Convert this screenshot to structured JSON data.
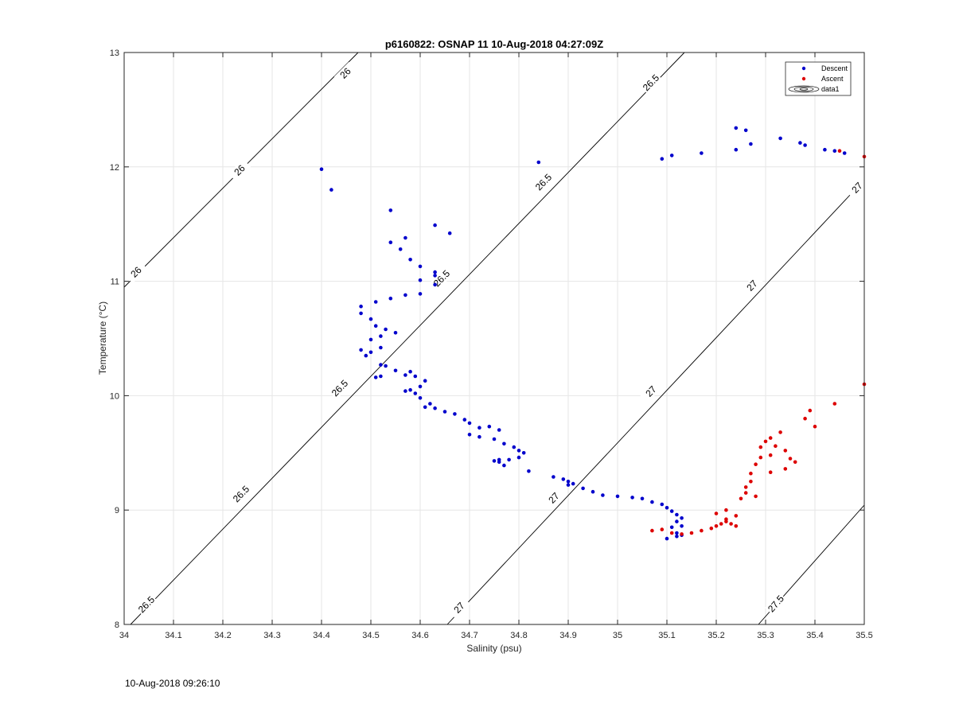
{
  "timestamp": "10-Aug-2018 09:26:10",
  "chart_data": {
    "type": "scatter",
    "title": "p6160822: OSNAP 11 10-Aug-2018 04:27:09Z",
    "xlabel": "Salinity (psu)",
    "ylabel": "Temperature (°C)",
    "xlim": [
      34,
      35.5
    ],
    "ylim": [
      8,
      13
    ],
    "grid": true,
    "x_ticks": [
      "34",
      "34.1",
      "34.2",
      "34.3",
      "34.4",
      "34.5",
      "34.6",
      "34.7",
      "34.8",
      "34.9",
      "35",
      "35.1",
      "35.2",
      "35.3",
      "35.4",
      "35.5"
    ],
    "y_ticks": [
      "8",
      "9",
      "10",
      "11",
      "12",
      "13"
    ],
    "legend": {
      "position": "top-right",
      "entries": [
        "Descent",
        "Ascent",
        "data1"
      ]
    },
    "series": [
      {
        "name": "Descent",
        "color": "#0000cc",
        "points": [
          [
            34.4,
            11.98
          ],
          [
            34.42,
            11.8
          ],
          [
            34.54,
            11.62
          ],
          [
            34.54,
            11.34
          ],
          [
            34.56,
            11.28
          ],
          [
            34.57,
            11.38
          ],
          [
            34.58,
            11.19
          ],
          [
            34.6,
            11.13
          ],
          [
            34.6,
            11.01
          ],
          [
            34.63,
            11.49
          ],
          [
            34.66,
            11.42
          ],
          [
            34.63,
            11.08
          ],
          [
            34.63,
            11.05
          ],
          [
            34.63,
            10.97
          ],
          [
            34.6,
            10.89
          ],
          [
            34.57,
            10.88
          ],
          [
            34.54,
            10.85
          ],
          [
            34.51,
            10.82
          ],
          [
            34.48,
            10.78
          ],
          [
            34.48,
            10.72
          ],
          [
            34.5,
            10.67
          ],
          [
            34.51,
            10.61
          ],
          [
            34.53,
            10.58
          ],
          [
            34.55,
            10.55
          ],
          [
            34.52,
            10.52
          ],
          [
            34.5,
            10.49
          ],
          [
            34.52,
            10.42
          ],
          [
            34.5,
            10.38
          ],
          [
            34.48,
            10.4
          ],
          [
            34.49,
            10.35
          ],
          [
            34.52,
            10.27
          ],
          [
            34.53,
            10.26
          ],
          [
            34.51,
            10.16
          ],
          [
            34.52,
            10.17
          ],
          [
            34.55,
            10.22
          ],
          [
            34.57,
            10.18
          ],
          [
            34.58,
            10.21
          ],
          [
            34.59,
            10.17
          ],
          [
            34.61,
            10.13
          ],
          [
            34.6,
            10.08
          ],
          [
            34.58,
            10.05
          ],
          [
            34.59,
            10.02
          ],
          [
            34.57,
            10.04
          ],
          [
            34.6,
            9.98
          ],
          [
            34.62,
            9.93
          ],
          [
            34.61,
            9.9
          ],
          [
            34.63,
            9.89
          ],
          [
            34.65,
            9.86
          ],
          [
            34.67,
            9.84
          ],
          [
            34.69,
            9.79
          ],
          [
            34.7,
            9.76
          ],
          [
            34.72,
            9.72
          ],
          [
            34.74,
            9.73
          ],
          [
            34.76,
            9.7
          ],
          [
            34.7,
            9.66
          ],
          [
            34.72,
            9.64
          ],
          [
            34.75,
            9.62
          ],
          [
            34.77,
            9.58
          ],
          [
            34.79,
            9.55
          ],
          [
            34.8,
            9.52
          ],
          [
            34.81,
            9.5
          ],
          [
            34.8,
            9.46
          ],
          [
            34.78,
            9.44
          ],
          [
            34.76,
            9.44
          ],
          [
            34.75,
            9.43
          ],
          [
            34.76,
            9.42
          ],
          [
            34.77,
            9.39
          ],
          [
            34.82,
            9.34
          ],
          [
            34.87,
            9.29
          ],
          [
            34.89,
            9.27
          ],
          [
            34.9,
            9.25
          ],
          [
            34.9,
            9.22
          ],
          [
            34.91,
            9.23
          ],
          [
            34.93,
            9.19
          ],
          [
            34.95,
            9.16
          ],
          [
            34.97,
            9.13
          ],
          [
            35.0,
            9.12
          ],
          [
            35.03,
            9.11
          ],
          [
            35.05,
            9.1
          ],
          [
            35.07,
            9.07
          ],
          [
            35.09,
            9.05
          ],
          [
            35.1,
            9.02
          ],
          [
            35.11,
            8.99
          ],
          [
            35.12,
            8.96
          ],
          [
            35.13,
            8.93
          ],
          [
            35.12,
            8.9
          ],
          [
            35.13,
            8.86
          ],
          [
            35.11,
            8.85
          ],
          [
            35.12,
            8.8
          ],
          [
            35.13,
            8.78
          ],
          [
            35.1,
            8.75
          ],
          [
            35.12,
            8.77
          ],
          [
            35.09,
            12.07
          ],
          [
            35.11,
            12.1
          ],
          [
            35.17,
            12.12
          ],
          [
            35.24,
            12.15
          ],
          [
            35.24,
            12.34
          ],
          [
            35.26,
            12.32
          ],
          [
            35.27,
            12.2
          ],
          [
            35.33,
            12.25
          ],
          [
            35.37,
            12.21
          ],
          [
            35.38,
            12.19
          ],
          [
            35.42,
            12.15
          ],
          [
            35.44,
            12.14
          ],
          [
            35.46,
            12.12
          ],
          [
            34.84,
            12.04
          ]
        ]
      },
      {
        "name": "Ascent",
        "color": "#dd0000",
        "points": [
          [
            35.07,
            8.82
          ],
          [
            35.09,
            8.83
          ],
          [
            35.11,
            8.8
          ],
          [
            35.13,
            8.79
          ],
          [
            35.15,
            8.8
          ],
          [
            35.17,
            8.82
          ],
          [
            35.19,
            8.84
          ],
          [
            35.2,
            8.86
          ],
          [
            35.21,
            8.88
          ],
          [
            35.22,
            8.9
          ],
          [
            35.22,
            8.92
          ],
          [
            35.23,
            8.88
          ],
          [
            35.24,
            8.86
          ],
          [
            35.24,
            8.95
          ],
          [
            35.22,
            9.0
          ],
          [
            35.2,
            8.97
          ],
          [
            35.25,
            9.1
          ],
          [
            35.26,
            9.15
          ],
          [
            35.26,
            9.2
          ],
          [
            35.27,
            9.25
          ],
          [
            35.28,
            9.12
          ],
          [
            35.27,
            9.32
          ],
          [
            35.28,
            9.4
          ],
          [
            35.29,
            9.46
          ],
          [
            35.29,
            9.55
          ],
          [
            35.3,
            9.6
          ],
          [
            35.31,
            9.63
          ],
          [
            35.31,
            9.48
          ],
          [
            35.31,
            9.33
          ],
          [
            35.32,
            9.56
          ],
          [
            35.33,
            9.68
          ],
          [
            35.34,
            9.52
          ],
          [
            35.35,
            9.45
          ],
          [
            35.34,
            9.36
          ],
          [
            35.36,
            9.42
          ],
          [
            35.38,
            9.8
          ],
          [
            35.39,
            9.87
          ],
          [
            35.4,
            9.73
          ],
          [
            35.44,
            9.93
          ],
          [
            35.5,
            10.1
          ],
          [
            35.45,
            12.14
          ],
          [
            35.5,
            12.09
          ]
        ]
      }
    ],
    "contours": [
      {
        "label": "26",
        "values_shown": [
          "26",
          "26",
          "26"
        ]
      },
      {
        "label": "26.5",
        "values_shown": [
          "26.5",
          "26.5",
          "26.5",
          "26.5",
          "26.5",
          "26.5"
        ]
      },
      {
        "label": "27",
        "values_shown": [
          "27",
          "27",
          "27",
          "27",
          "27",
          "27"
        ]
      },
      {
        "label": "27.5",
        "values_shown": [
          "27.5"
        ]
      }
    ]
  }
}
